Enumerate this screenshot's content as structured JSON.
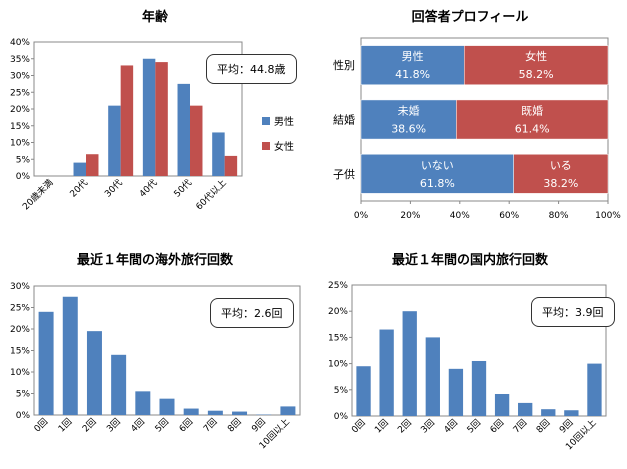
{
  "colors": {
    "male": "#4f81bd",
    "female": "#c0504d",
    "bar": "#4f81bd"
  },
  "chart_data": [
    {
      "id": "age",
      "type": "bar",
      "title": "年齢",
      "categories": [
        "20歳未満",
        "20代",
        "30代",
        "40代",
        "50代",
        "60代以上"
      ],
      "series": [
        {
          "name": "男性",
          "values": [
            0,
            4,
            21,
            35,
            27.5,
            13
          ]
        },
        {
          "name": "女性",
          "values": [
            0,
            6.5,
            33,
            34,
            21,
            6
          ]
        }
      ],
      "yticks": [
        "0%",
        "5%",
        "10%",
        "15%",
        "20%",
        "25%",
        "30%",
        "35%",
        "40%"
      ],
      "ylim": [
        0,
        40
      ],
      "legend": "right",
      "annotation": "平均：44.8歳"
    },
    {
      "id": "profile",
      "type": "bar",
      "title": "回答者プロフィール",
      "rows": [
        {
          "label": "性別",
          "segments": [
            {
              "name": "男性",
              "value": 41.8,
              "text": "41.8%"
            },
            {
              "name": "女性",
              "value": 58.2,
              "text": "58.2%"
            }
          ]
        },
        {
          "label": "結婚",
          "segments": [
            {
              "name": "未婚",
              "value": 38.6,
              "text": "38.6%"
            },
            {
              "name": "既婚",
              "value": 61.4,
              "text": "61.4%"
            }
          ]
        },
        {
          "label": "子供",
          "segments": [
            {
              "name": "いない",
              "value": 61.8,
              "text": "61.8%"
            },
            {
              "name": "いる",
              "value": 38.2,
              "text": "38.2%"
            }
          ]
        }
      ],
      "xticks": [
        "0%",
        "20%",
        "40%",
        "60%",
        "80%",
        "100%"
      ],
      "xlim": [
        0,
        100
      ],
      "orientation": "horizontal",
      "stacked": true
    },
    {
      "id": "overseas",
      "type": "bar",
      "title": "最近１年間の海外旅行回数",
      "categories": [
        "0回",
        "1回",
        "2回",
        "3回",
        "4回",
        "5回",
        "6回",
        "7回",
        "8回",
        "9回",
        "10回以上"
      ],
      "values": [
        24,
        27.5,
        19.5,
        14,
        5.5,
        3.8,
        1.5,
        1,
        0.8,
        0.1,
        2
      ],
      "yticks": [
        "0%",
        "5%",
        "10%",
        "15%",
        "20%",
        "25%",
        "30%"
      ],
      "ylim": [
        0,
        30
      ],
      "annotation": "平均：2.6回"
    },
    {
      "id": "domestic",
      "type": "bar",
      "title": "最近１年間の国内旅行回数",
      "categories": [
        "0回",
        "1回",
        "2回",
        "3回",
        "4回",
        "5回",
        "6回",
        "7回",
        "8回",
        "9回",
        "10回以上"
      ],
      "values": [
        9.5,
        16.5,
        20,
        15,
        9,
        10.5,
        4.2,
        2.5,
        1.3,
        1.1,
        10
      ],
      "yticks": [
        "0%",
        "5%",
        "10%",
        "15%",
        "20%",
        "25%"
      ],
      "ylim": [
        0,
        25
      ],
      "annotation": "平均：3.9回"
    }
  ]
}
